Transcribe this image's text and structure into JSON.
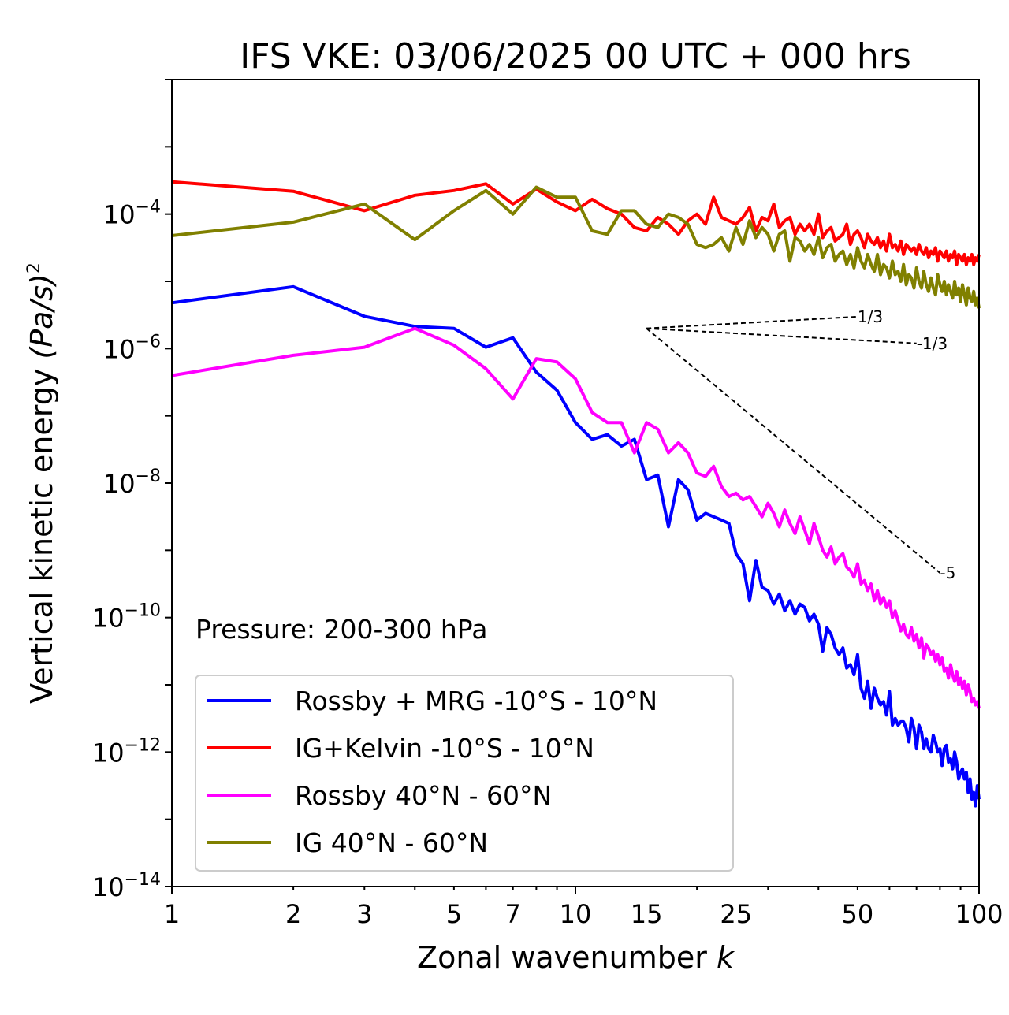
{
  "chart_data": {
    "type": "line",
    "title": "IFS VKE: 03/06/2025 00 UTC + 000 hrs",
    "xlabel": "Zonal wavenumber",
    "xlabel_var": "k",
    "ylabel": "Vertical kinetic energy",
    "ylabel_unit_base": "(Pa/s)",
    "ylabel_unit_exp": "2",
    "xscale": "log",
    "yscale": "log",
    "xlim": [
      1,
      100
    ],
    "ylim": [
      1e-14,
      0.01
    ],
    "x_ticks": [
      {
        "value": 1,
        "label": "1"
      },
      {
        "value": 2,
        "label": "2"
      },
      {
        "value": 3,
        "label": "3"
      },
      {
        "value": 5,
        "label": "5"
      },
      {
        "value": 7,
        "label": "7"
      },
      {
        "value": 10,
        "label": "10"
      },
      {
        "value": 15,
        "label": "15"
      },
      {
        "value": 25,
        "label": "25"
      },
      {
        "value": 50,
        "label": "50"
      },
      {
        "value": 100,
        "label": "100"
      }
    ],
    "y_ticks": [
      {
        "exp": -4,
        "base": "10",
        "sup": "−4"
      },
      {
        "exp": -6,
        "base": "10",
        "sup": "−6"
      },
      {
        "exp": -8,
        "base": "10",
        "sup": "−8"
      },
      {
        "exp": -10,
        "base": "10",
        "sup": "−10"
      },
      {
        "exp": -12,
        "base": "10",
        "sup": "−12"
      },
      {
        "exp": -14,
        "base": "10",
        "sup": "−14"
      }
    ],
    "annotation": "Pressure: 200-300 hPa",
    "legend_position": "lower-left",
    "series": [
      {
        "name": "Rossby + MRG -10°S - 10°N",
        "color": "#0000ff",
        "log10_values": [
          -5.32,
          -5.08,
          -5.52,
          -5.67,
          -5.7,
          -5.98,
          -5.84,
          -6.35,
          -6.62,
          -7.1,
          -7.35,
          -7.28,
          -7.45,
          -7.35,
          -7.95,
          -7.88,
          -8.65,
          -7.95,
          -8.1,
          -8.55,
          -8.45,
          -8.5,
          -8.55,
          -8.6,
          -9.05,
          -9.2,
          -9.75,
          -9.15,
          -9.55,
          -9.6,
          -9.8,
          -9.65,
          -9.9,
          -9.75,
          -9.95,
          -9.8,
          -9.85,
          -10.05,
          -9.95,
          -10.1,
          -10.5,
          -10.15,
          -10.25,
          -10.45,
          -10.55,
          -10.45,
          -10.75,
          -10.7,
          -10.85,
          -10.55,
          -11.05,
          -11.2,
          -10.95,
          -11.35,
          -11.05,
          -11.2,
          -11.3,
          -11.25,
          -11.45,
          -11.1,
          -11.6,
          -11.5,
          -11.6,
          -11.55,
          -11.55,
          -11.65,
          -11.85,
          -11.5,
          -11.65,
          -11.95,
          -11.6,
          -11.7,
          -11.95,
          -11.8,
          -11.95,
          -12.0,
          -11.75,
          -11.85,
          -12.0,
          -11.95,
          -12.2,
          -11.95,
          -11.9,
          -12.15,
          -12.1,
          -12.25,
          -12.0,
          -12.15,
          -12.4,
          -12.3,
          -12.25,
          -12.4,
          -12.3,
          -12.6,
          -12.4,
          -12.7,
          -12.6,
          -12.8,
          -12.5,
          -12.7
        ]
      },
      {
        "name": "IG+Kelvin -10°S - 10°N",
        "color": "#ff0000",
        "log10_values": [
          -3.52,
          -3.66,
          -3.95,
          -3.72,
          -3.65,
          -3.55,
          -3.85,
          -3.63,
          -3.82,
          -3.95,
          -3.78,
          -3.92,
          -4.0,
          -4.2,
          -4.25,
          -4.05,
          -4.15,
          -4.3,
          -4.1,
          -4.0,
          -4.15,
          -3.75,
          -4.05,
          -4.1,
          -4.15,
          -4.05,
          -3.9,
          -4.25,
          -4.05,
          -4.1,
          -3.85,
          -4.2,
          -4.1,
          -4.05,
          -4.3,
          -4.15,
          -4.25,
          -4.15,
          -4.3,
          -4.0,
          -4.35,
          -4.25,
          -4.2,
          -4.4,
          -4.35,
          -4.3,
          -4.15,
          -4.45,
          -4.3,
          -4.25,
          -4.35,
          -4.5,
          -4.3,
          -4.4,
          -4.45,
          -4.35,
          -4.5,
          -4.4,
          -4.55,
          -4.3,
          -4.5,
          -4.45,
          -4.55,
          -4.4,
          -4.6,
          -4.45,
          -4.5,
          -4.55,
          -4.5,
          -4.6,
          -4.45,
          -4.55,
          -4.6,
          -4.5,
          -4.65,
          -4.55,
          -4.6,
          -4.5,
          -4.7,
          -4.55,
          -4.6,
          -4.65,
          -4.55,
          -4.7,
          -4.6,
          -4.65,
          -4.55,
          -4.75,
          -4.6,
          -4.65,
          -4.7,
          -4.6,
          -4.75,
          -4.65,
          -4.7,
          -4.6,
          -4.75,
          -4.65,
          -4.7,
          -4.6
        ]
      },
      {
        "name": "Rossby 40°N - 60°N",
        "color": "#ff00ff",
        "log10_values": [
          -6.4,
          -6.1,
          -5.98,
          -5.7,
          -5.95,
          -6.3,
          -6.75,
          -6.15,
          -6.2,
          -6.45,
          -6.95,
          -7.1,
          -7.1,
          -7.55,
          -7.1,
          -7.2,
          -7.55,
          -7.4,
          -7.55,
          -7.85,
          -7.9,
          -7.75,
          -8.05,
          -8.2,
          -8.15,
          -8.25,
          -8.2,
          -8.35,
          -8.5,
          -8.3,
          -8.45,
          -8.65,
          -8.4,
          -8.6,
          -8.75,
          -8.5,
          -8.7,
          -8.9,
          -8.6,
          -8.8,
          -9.0,
          -9.1,
          -8.95,
          -9.2,
          -9.1,
          -9.05,
          -9.25,
          -9.3,
          -9.4,
          -9.2,
          -9.5,
          -9.45,
          -9.6,
          -9.5,
          -9.75,
          -9.6,
          -9.8,
          -9.7,
          -9.85,
          -9.75,
          -10.0,
          -9.9,
          -10.05,
          -10.2,
          -10.1,
          -10.25,
          -10.3,
          -10.15,
          -10.35,
          -10.25,
          -10.45,
          -10.3,
          -10.6,
          -10.4,
          -10.45,
          -10.55,
          -10.5,
          -10.65,
          -10.55,
          -10.7,
          -10.6,
          -10.8,
          -10.75,
          -10.9,
          -10.7,
          -10.85,
          -10.95,
          -10.8,
          -11.0,
          -10.9,
          -11.05,
          -10.95,
          -11.15,
          -11.0,
          -11.1,
          -11.25,
          -11.2,
          -11.3,
          -11.25,
          -11.35
        ]
      },
      {
        "name": "IG 40°N - 60°N",
        "color": "#808000",
        "log10_values": [
          -4.32,
          -4.12,
          -3.85,
          -4.38,
          -3.95,
          -3.65,
          -4.0,
          -3.6,
          -3.75,
          -3.75,
          -4.25,
          -4.3,
          -3.95,
          -3.95,
          -4.15,
          -4.2,
          -4.0,
          -4.05,
          -4.15,
          -4.45,
          -4.5,
          -4.45,
          -4.35,
          -4.55,
          -4.2,
          -4.45,
          -4.1,
          -4.35,
          -4.2,
          -4.3,
          -4.55,
          -4.3,
          -4.25,
          -4.7,
          -4.35,
          -4.4,
          -4.55,
          -4.45,
          -4.6,
          -4.35,
          -4.65,
          -4.5,
          -4.45,
          -4.7,
          -4.6,
          -4.55,
          -4.75,
          -4.6,
          -4.8,
          -4.5,
          -4.7,
          -4.8,
          -4.6,
          -4.75,
          -4.85,
          -4.6,
          -4.9,
          -4.75,
          -4.8,
          -4.95,
          -4.7,
          -4.9,
          -4.85,
          -5.0,
          -4.75,
          -5.05,
          -4.9,
          -4.95,
          -5.1,
          -4.8,
          -5.0,
          -5.1,
          -4.85,
          -5.05,
          -5.15,
          -4.95,
          -5.1,
          -5.2,
          -4.9,
          -5.05,
          -5.15,
          -5.0,
          -5.2,
          -5.05,
          -5.15,
          -5.25,
          -5.0,
          -5.2,
          -5.1,
          -5.3,
          -5.05,
          -5.2,
          -5.35,
          -5.1,
          -5.25,
          -5.3,
          -5.15,
          -5.35,
          -5.25,
          -5.4
        ]
      }
    ],
    "reference_slopes": [
      {
        "label": "1/3",
        "slope": 0.3333,
        "from_k": 15,
        "to_k": 50,
        "from_log10_y": -5.7
      },
      {
        "label": "-1/3",
        "slope": -0.3333,
        "from_k": 15,
        "to_k": 70,
        "from_log10_y": -5.7
      },
      {
        "label": "-5",
        "slope": -5,
        "from_k": 15,
        "to_k": 80,
        "from_log10_y": -5.7
      }
    ]
  }
}
